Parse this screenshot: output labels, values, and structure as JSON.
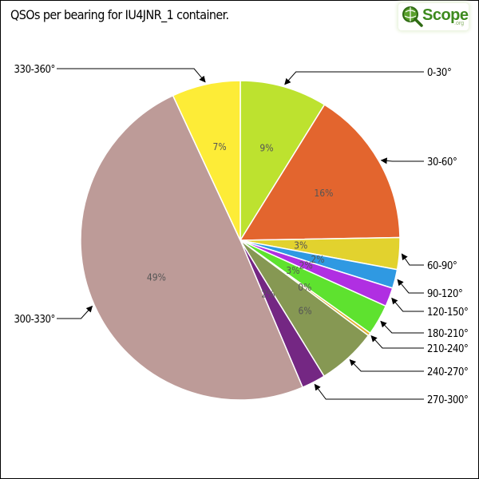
{
  "title": "QSOs per bearing for IU4JNR_1 container.",
  "logo": {
    "name": "QScope",
    "text_main": "Scope",
    "text_sub": ".org"
  },
  "chart_data": {
    "type": "pie",
    "title": "QSOs per bearing for IU4JNR_1 container.",
    "start_angle_deg": 0,
    "direction": "clockwise",
    "categories": [
      "0-30°",
      "30-60°",
      "60-90°",
      "90-120°",
      "120-150°",
      "180-210°",
      "210-240°",
      "240-270°",
      "270-300°",
      "300-330°",
      "330-360°"
    ],
    "values": [
      8.8,
      15.8,
      3.2,
      1.9,
      1.9,
      3.1,
      0.3,
      6.0,
      2.4,
      49.2,
      6.9
    ],
    "labels_pct": [
      "9%",
      "16%",
      "3%",
      "2%",
      "2%",
      "3%",
      "0%",
      "6%",
      "2%",
      "49%",
      "7%"
    ],
    "colors": [
      "#bde22f",
      "#e3652e",
      "#e2d22e",
      "#2f99e2",
      "#b02fe2",
      "#5ee22f",
      "#e2b12f",
      "#869853",
      "#742783",
      "#bd9b98",
      "#fdec37"
    ]
  }
}
